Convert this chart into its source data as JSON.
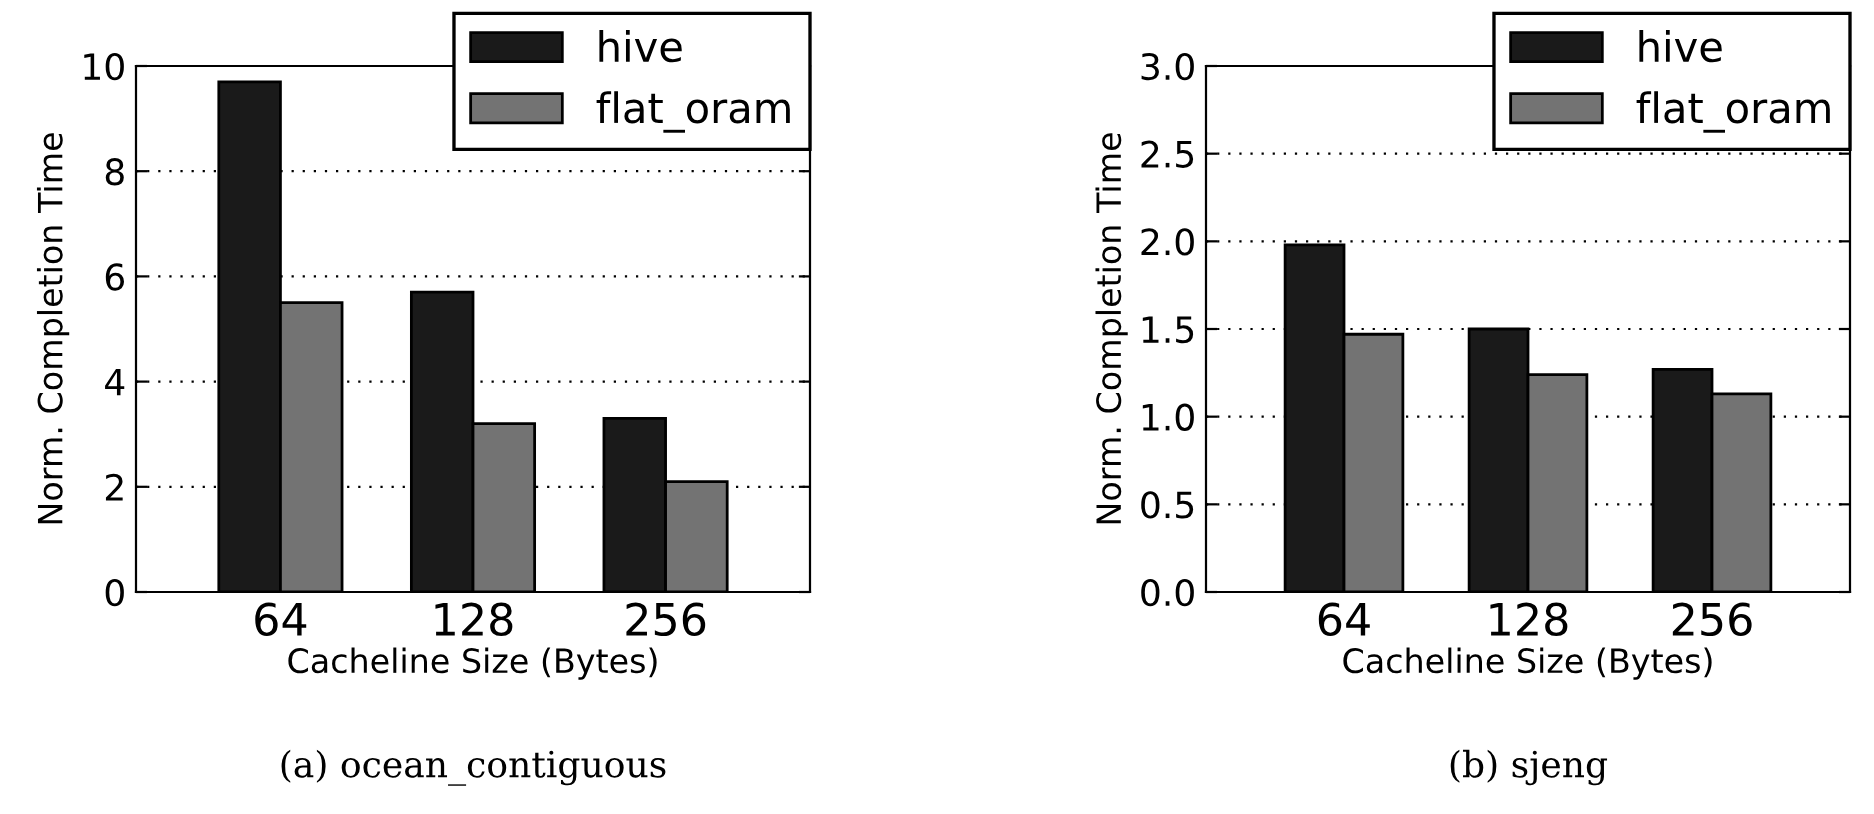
{
  "chart_data": [
    {
      "type": "bar",
      "xlabel": "Cacheline Size (Bytes)",
      "ylabel": "Norm. Completion Time",
      "categories": [
        "64",
        "128",
        "256"
      ],
      "series": [
        {
          "name": "hive",
          "color": "#1a1a1a",
          "values": [
            9.7,
            5.7,
            3.3
          ]
        },
        {
          "name": "flat_oram",
          "color": "#737373",
          "values": [
            5.5,
            3.2,
            2.1
          ]
        }
      ],
      "ylim": [
        0,
        10
      ],
      "yticks": [
        0,
        2,
        4,
        6,
        8,
        10
      ],
      "grid": "y",
      "legend": "top right",
      "annotations": [
        "(a) ocean_contiguous"
      ]
    },
    {
      "type": "bar",
      "xlabel": "Cacheline Size (Bytes)",
      "ylabel": "Norm. Completion Time",
      "categories": [
        "64",
        "128",
        "256"
      ],
      "series": [
        {
          "name": "hive",
          "color": "#1a1a1a",
          "values": [
            1.98,
            1.5,
            1.27
          ]
        },
        {
          "name": "flat_oram",
          "color": "#737373",
          "values": [
            1.47,
            1.24,
            1.13
          ]
        }
      ],
      "ylim": [
        0,
        3.0
      ],
      "yticks": [
        {
          "value": 0,
          "label": "0.0"
        },
        0.5,
        {
          "value": 1,
          "label": "1.0"
        },
        1.5,
        {
          "value": 2,
          "label": "2.0"
        },
        2.5,
        {
          "value": 3,
          "label": "3.0"
        }
      ],
      "grid": "y",
      "legend": "top right",
      "annotations": [
        "(b) sjeng"
      ]
    }
  ]
}
